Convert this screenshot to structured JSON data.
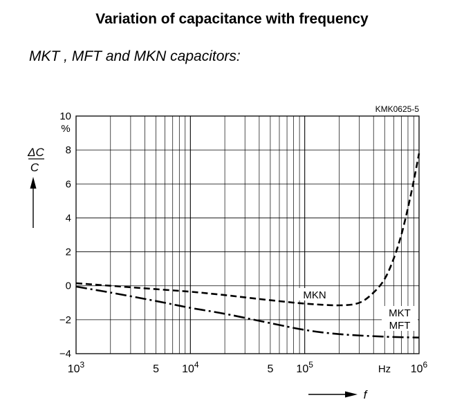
{
  "page": {
    "title": "Variation of capacitance with frequency",
    "subtitle": "MKT , MFT and MKN capacitors:"
  },
  "chart_data": {
    "type": "line",
    "figure_code": "KMK0625-5",
    "x_scale": "log",
    "xlim": [
      1000,
      1000000
    ],
    "ylim": [
      -4,
      10
    ],
    "grid": true,
    "y_ticks": [
      {
        "value": 10,
        "label": "10"
      },
      {
        "value": 8,
        "label": "8"
      },
      {
        "value": 6,
        "label": "6"
      },
      {
        "value": 4,
        "label": "4"
      },
      {
        "value": 2,
        "label": "2"
      },
      {
        "value": 0,
        "label": "0"
      },
      {
        "value": -2,
        "label": "−2"
      },
      {
        "value": -4,
        "label": "−4"
      }
    ],
    "y_unit": "%",
    "ylabel_num": "ΔC",
    "ylabel_den": "C",
    "x_ticks": [
      {
        "value": 1000,
        "base": "10",
        "exp": "3"
      },
      {
        "value": 5000,
        "base": "5",
        "exp": ""
      },
      {
        "value": 10000,
        "base": "10",
        "exp": "4"
      },
      {
        "value": 50000,
        "base": "5",
        "exp": ""
      },
      {
        "value": 100000,
        "base": "10",
        "exp": "5"
      },
      {
        "value": 1000000,
        "base": "10",
        "exp": "6"
      }
    ],
    "x_unit": "Hz",
    "xlabel": "f",
    "series": [
      {
        "name": "MKN",
        "style": "dashed",
        "x": [
          1000,
          2000,
          5000,
          10000,
          20000,
          50000,
          100000,
          200000,
          300000,
          400000,
          500000,
          600000,
          700000,
          800000,
          900000,
          1000000
        ],
        "y": [
          0.15,
          0.0,
          -0.2,
          -0.35,
          -0.55,
          -0.85,
          -1.05,
          -1.15,
          -1.0,
          -0.4,
          0.4,
          1.6,
          3.0,
          4.6,
          6.2,
          7.8
        ]
      },
      {
        "name": "MKT\nMFT",
        "style": "dashdot",
        "x": [
          1000,
          2000,
          5000,
          10000,
          20000,
          50000,
          100000,
          200000,
          500000,
          1000000
        ],
        "y": [
          -0.05,
          -0.4,
          -0.9,
          -1.3,
          -1.65,
          -2.2,
          -2.6,
          -2.85,
          -3.0,
          -3.05
        ]
      }
    ]
  }
}
